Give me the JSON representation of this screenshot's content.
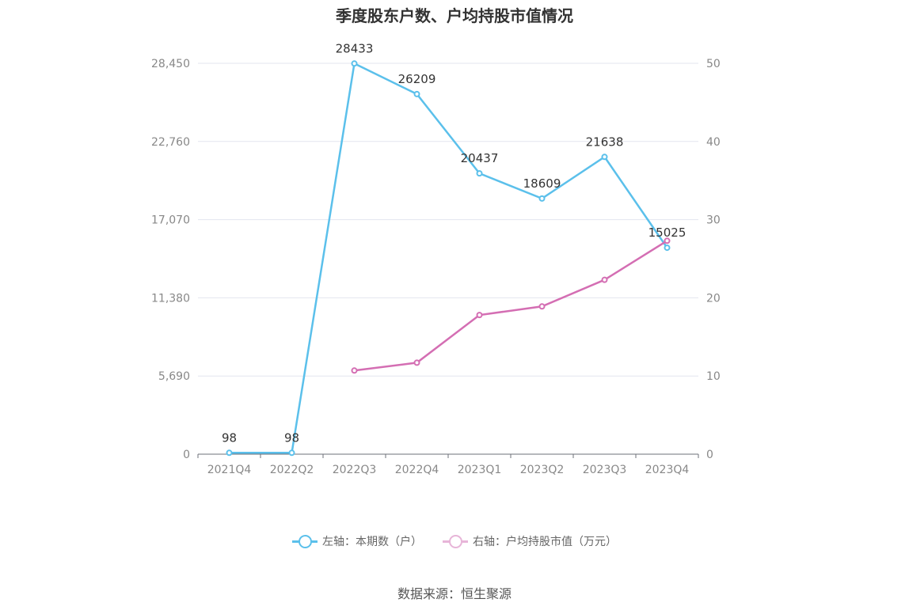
{
  "chart_data": {
    "type": "line",
    "title": "季度股东户数、户均持股市值情况",
    "categories": [
      "2021Q4",
      "2022Q2",
      "2022Q3",
      "2022Q4",
      "2023Q1",
      "2023Q2",
      "2023Q3",
      "2023Q4"
    ],
    "y_left": {
      "ylim": [
        0,
        28450
      ],
      "ticks": [
        "0",
        "5,690",
        "11,380",
        "17,070",
        "22,760",
        "28,450"
      ],
      "tick_values": [
        0,
        5690,
        11380,
        17070,
        22760,
        28450
      ]
    },
    "y_right": {
      "ylim": [
        0,
        50
      ],
      "ticks": [
        "0",
        "10",
        "20",
        "30",
        "40",
        "50"
      ],
      "tick_values": [
        0,
        10,
        20,
        30,
        40,
        50
      ]
    },
    "series": [
      {
        "name": "左轴：本期数（户）",
        "axis": "left",
        "color": "#5bc0eb",
        "values": [
          98,
          98,
          28433,
          26209,
          20437,
          18609,
          21638,
          15025
        ],
        "labels": [
          "98",
          "98",
          "28433",
          "26209",
          "20437",
          "18609",
          "21638",
          "15025"
        ]
      },
      {
        "name": "右轴：户均持股市值（万元）",
        "axis": "right",
        "color": "#d46eb3",
        "values": [
          null,
          null,
          10.7,
          11.7,
          17.8,
          18.9,
          22.3,
          27.3
        ]
      }
    ],
    "grid": true,
    "legend_position": "bottom"
  },
  "source": "数据来源：恒生聚源"
}
